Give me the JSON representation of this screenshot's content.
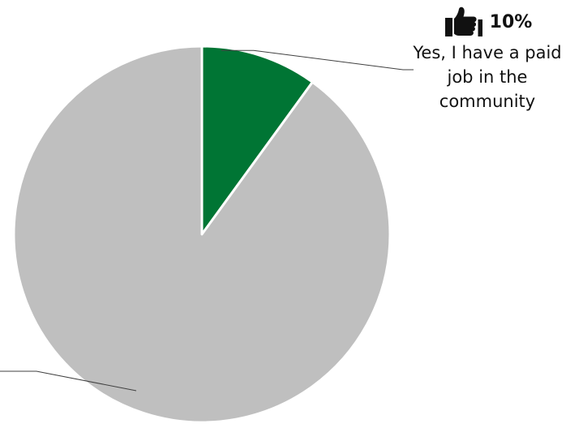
{
  "chart_data": {
    "type": "pie",
    "start_angle_deg": 0,
    "direction": "clockwise",
    "slices": [
      {
        "label": "Yes, I have a paid job in the community",
        "value": 10,
        "value_label": "10%",
        "color": "#007534",
        "icon": "thumbs-up-icon"
      },
      {
        "label": "",
        "value": 90,
        "value_label": "",
        "color": "#bfbfbf"
      }
    ],
    "border_color": "#ffffff",
    "leader_line_color": "#404040"
  }
}
